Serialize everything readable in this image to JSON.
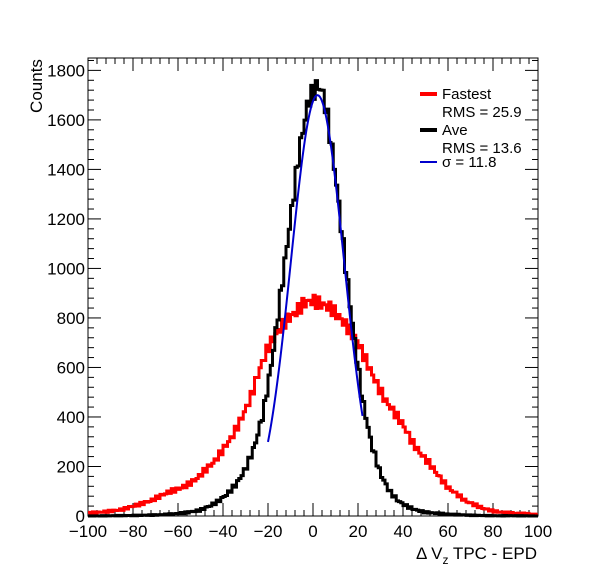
{
  "chart_data": {
    "type": "line",
    "xlabel": "Δ V",
    "xlabel_sub": "z",
    "xlabel_rest": " TPC - EPD",
    "ylabel": "Counts",
    "xlim": [
      -100,
      100
    ],
    "ylim": [
      0,
      1850
    ],
    "x_ticks": [
      -100,
      -80,
      -60,
      -40,
      -20,
      0,
      20,
      40,
      60,
      80,
      100
    ],
    "y_ticks": [
      0,
      200,
      400,
      600,
      800,
      1000,
      1200,
      1400,
      1600,
      1800
    ],
    "grid": false,
    "legend_position": "top-right",
    "colors": {
      "fastest": "#ff0000",
      "ave": "#000000",
      "fit": "#0000cc"
    },
    "legend": [
      {
        "label": "Fastest",
        "stat": "RMS = 25.9",
        "color": "#ff0000"
      },
      {
        "label": "Ave",
        "stat": "RMS = 13.6",
        "color": "#000000"
      },
      {
        "label": "σ = 11.8",
        "stat": "",
        "color": "#0000cc"
      }
    ],
    "series": [
      {
        "name": "Fastest",
        "x": [
          -100,
          -96,
          -92,
          -88,
          -84,
          -80,
          -76,
          -72,
          -68,
          -64,
          -60,
          -56,
          -52,
          -48,
          -44,
          -40,
          -36,
          -32,
          -28,
          -24,
          -20,
          -16,
          -12,
          -8,
          -4,
          0,
          4,
          8,
          12,
          16,
          20,
          24,
          28,
          32,
          36,
          40,
          44,
          48,
          52,
          56,
          60,
          64,
          68,
          72,
          76,
          80,
          84,
          88,
          92,
          96,
          100
        ],
        "y": [
          12,
          14,
          18,
          22,
          28,
          40,
          50,
          62,
          80,
          98,
          108,
          125,
          148,
          185,
          218,
          268,
          320,
          390,
          470,
          585,
          680,
          740,
          790,
          820,
          860,
          870,
          855,
          840,
          800,
          755,
          700,
          620,
          540,
          470,
          420,
          370,
          300,
          250,
          210,
          160,
          115,
          88,
          60,
          45,
          30,
          20,
          15,
          12,
          10,
          8,
          6
        ]
      },
      {
        "name": "Ave",
        "x": [
          -100,
          -90,
          -80,
          -70,
          -62,
          -56,
          -50,
          -46,
          -42,
          -38,
          -34,
          -30,
          -26,
          -22,
          -18,
          -14,
          -10,
          -6,
          -2,
          0,
          2,
          4,
          6,
          10,
          14,
          18,
          22,
          26,
          30,
          34,
          38,
          42,
          46,
          50,
          56,
          62,
          70,
          80,
          90,
          100
        ],
        "y": [
          0,
          1,
          2,
          4,
          8,
          14,
          24,
          40,
          60,
          90,
          130,
          190,
          280,
          420,
          640,
          920,
          1200,
          1480,
          1680,
          1710,
          1740,
          1720,
          1640,
          1380,
          1050,
          740,
          470,
          290,
          170,
          100,
          60,
          38,
          24,
          15,
          10,
          6,
          3,
          1,
          1,
          0
        ]
      }
    ],
    "fit": {
      "name": "Gaussian fit",
      "mean": 2.0,
      "sigma": 11.8,
      "amplitude": 1700,
      "x_range": [
        -20,
        22
      ]
    }
  }
}
